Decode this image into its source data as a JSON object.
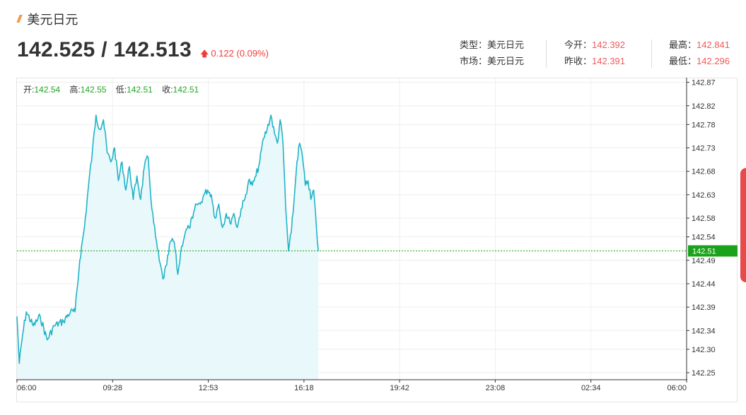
{
  "header": {
    "logo_mark": "//",
    "title": "美元日元",
    "price": "142.525 / 142.513",
    "change": "0.122 (0.09%)",
    "change_arrow": "up-arrow-icon"
  },
  "info": {
    "type_label": "类型：",
    "type_value": "美元日元",
    "market_label": "市场：",
    "market_value": "美元日元",
    "open_label": "今开：",
    "open_value": "142.392",
    "prev_close_label": "昨收：",
    "prev_close_value": "142.391",
    "high_label": "最高：",
    "high_value": "142.841",
    "low_label": "最低：",
    "low_value": "142.296"
  },
  "ohlc": {
    "open_label": "开:",
    "open_value": "142.54",
    "high_label": "高:",
    "high_value": "142.55",
    "low_label": "低:",
    "low_value": "142.51",
    "close_label": "收:",
    "close_value": "142.51"
  },
  "colors": {
    "line": "#1fb3c7",
    "fill": "#e9f8fb",
    "current": "#1aa31a",
    "up": "#f03c3c"
  },
  "chart_data": {
    "type": "area",
    "x_tick_labels": [
      "06:00",
      "09:28",
      "12:53",
      "16:18",
      "19:42",
      "23:08",
      "02:34",
      "06:00"
    ],
    "y_tick_labels": [
      "142.87",
      "142.82",
      "142.78",
      "142.73",
      "142.68",
      "142.63",
      "142.58",
      "142.54",
      "142.49",
      "142.44",
      "142.39",
      "142.34",
      "142.30",
      "142.25"
    ],
    "ylim": [
      142.235,
      142.88
    ],
    "current_value": 142.51,
    "current_label": "142.51",
    "grid": true,
    "series": [
      {
        "values": [
          {
            "t": "06:00",
            "v": 142.37
          },
          {
            "t": "06:05",
            "v": 142.27
          },
          {
            "t": "06:12",
            "v": 142.33
          },
          {
            "t": "06:20",
            "v": 142.38
          },
          {
            "t": "06:35",
            "v": 142.35
          },
          {
            "t": "06:50",
            "v": 142.37
          },
          {
            "t": "07:05",
            "v": 142.32
          },
          {
            "t": "07:20",
            "v": 142.35
          },
          {
            "t": "07:40",
            "v": 142.36
          },
          {
            "t": "07:55",
            "v": 142.38
          },
          {
            "t": "08:05",
            "v": 142.38
          },
          {
            "t": "08:15",
            "v": 142.49
          },
          {
            "t": "08:25",
            "v": 142.56
          },
          {
            "t": "08:35",
            "v": 142.66
          },
          {
            "t": "08:42",
            "v": 142.72
          },
          {
            "t": "08:50",
            "v": 142.8
          },
          {
            "t": "08:58",
            "v": 142.77
          },
          {
            "t": "09:06",
            "v": 142.79
          },
          {
            "t": "09:14",
            "v": 142.72
          },
          {
            "t": "09:22",
            "v": 142.7
          },
          {
            "t": "09:30",
            "v": 142.73
          },
          {
            "t": "09:38",
            "v": 142.66
          },
          {
            "t": "09:46",
            "v": 142.7
          },
          {
            "t": "09:54",
            "v": 142.64
          },
          {
            "t": "10:02",
            "v": 142.69
          },
          {
            "t": "10:10",
            "v": 142.62
          },
          {
            "t": "10:18",
            "v": 142.67
          },
          {
            "t": "10:26",
            "v": 142.62
          },
          {
            "t": "10:34",
            "v": 142.69
          },
          {
            "t": "10:42",
            "v": 142.71
          },
          {
            "t": "10:50",
            "v": 142.6
          },
          {
            "t": "10:58",
            "v": 142.54
          },
          {
            "t": "11:06",
            "v": 142.49
          },
          {
            "t": "11:14",
            "v": 142.45
          },
          {
            "t": "11:22",
            "v": 142.48
          },
          {
            "t": "11:30",
            "v": 142.53
          },
          {
            "t": "11:38",
            "v": 142.53
          },
          {
            "t": "11:46",
            "v": 142.46
          },
          {
            "t": "11:54",
            "v": 142.52
          },
          {
            "t": "12:02",
            "v": 142.55
          },
          {
            "t": "12:10",
            "v": 142.56
          },
          {
            "t": "12:18",
            "v": 142.58
          },
          {
            "t": "12:26",
            "v": 142.61
          },
          {
            "t": "12:34",
            "v": 142.61
          },
          {
            "t": "12:42",
            "v": 142.63
          },
          {
            "t": "12:50",
            "v": 142.64
          },
          {
            "t": "12:58",
            "v": 142.63
          },
          {
            "t": "13:06",
            "v": 142.58
          },
          {
            "t": "13:14",
            "v": 142.61
          },
          {
            "t": "13:22",
            "v": 142.56
          },
          {
            "t": "13:30",
            "v": 142.59
          },
          {
            "t": "13:38",
            "v": 142.57
          },
          {
            "t": "13:46",
            "v": 142.59
          },
          {
            "t": "13:54",
            "v": 142.56
          },
          {
            "t": "14:02",
            "v": 142.6
          },
          {
            "t": "14:10",
            "v": 142.62
          },
          {
            "t": "14:18",
            "v": 142.66
          },
          {
            "t": "14:26",
            "v": 142.65
          },
          {
            "t": "14:34",
            "v": 142.67
          },
          {
            "t": "14:42",
            "v": 142.7
          },
          {
            "t": "14:50",
            "v": 142.75
          },
          {
            "t": "14:58",
            "v": 142.77
          },
          {
            "t": "15:06",
            "v": 142.8
          },
          {
            "t": "15:14",
            "v": 142.76
          },
          {
            "t": "15:20",
            "v": 142.74
          },
          {
            "t": "15:26",
            "v": 142.79
          },
          {
            "t": "15:32",
            "v": 142.74
          },
          {
            "t": "15:38",
            "v": 142.6
          },
          {
            "t": "15:44",
            "v": 142.51
          },
          {
            "t": "15:50",
            "v": 142.55
          },
          {
            "t": "15:56",
            "v": 142.62
          },
          {
            "t": "16:02",
            "v": 142.7
          },
          {
            "t": "16:08",
            "v": 142.74
          },
          {
            "t": "16:14",
            "v": 142.71
          },
          {
            "t": "16:20",
            "v": 142.65
          },
          {
            "t": "16:26",
            "v": 142.66
          },
          {
            "t": "16:32",
            "v": 142.62
          },
          {
            "t": "16:38",
            "v": 142.64
          },
          {
            "t": "16:44",
            "v": 142.56
          },
          {
            "t": "16:48",
            "v": 142.51
          }
        ]
      }
    ]
  }
}
